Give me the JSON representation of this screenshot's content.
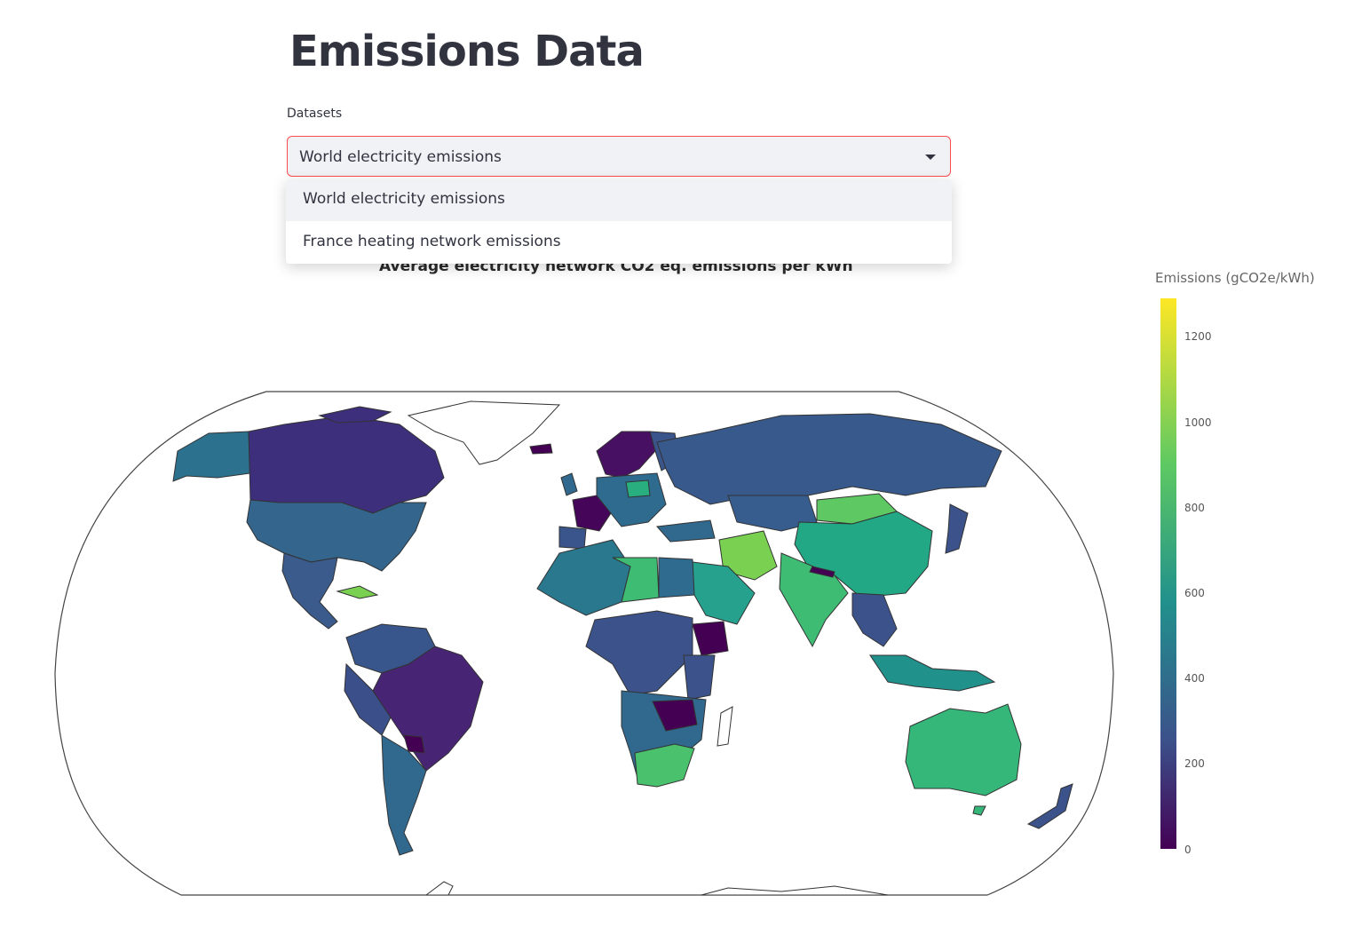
{
  "page": {
    "title": "Emissions Data"
  },
  "dataset_select": {
    "label": "Datasets",
    "selected": "World electricity emissions",
    "options": [
      "World electricity emissions",
      "France heating network emissions"
    ]
  },
  "map": {
    "title": "Average electricity network CO2 eq. emissions per kWh",
    "projection": "robinson",
    "colorscale": "viridis",
    "colorbar": {
      "title": "Emissions (gCO2e/kWh)",
      "min": 0,
      "max": 1290,
      "ticks": [
        "0",
        "200",
        "400",
        "600",
        "800",
        "1000",
        "1200"
      ]
    },
    "colors": {
      "low": "#440154",
      "mid": "#21918c",
      "high": "#fde725",
      "border": "#333333"
    }
  },
  "chart_data": {
    "type": "heatmap",
    "title": "Average electricity network CO2 eq. emissions per kWh",
    "colorbar_label": "Emissions (gCO2e/kWh)",
    "zlim": [
      0,
      1290
    ],
    "regions": [
      {
        "name": "Canada",
        "value": 150
      },
      {
        "name": "United States",
        "value": 450
      },
      {
        "name": "Mexico",
        "value": 420
      },
      {
        "name": "Brazil",
        "value": 100
      },
      {
        "name": "Argentina",
        "value": 350
      },
      {
        "name": "Russia",
        "value": 410
      },
      {
        "name": "China",
        "value": 700
      },
      {
        "name": "Mongolia",
        "value": 830
      },
      {
        "name": "India",
        "value": 800
      },
      {
        "name": "Australia",
        "value": 780
      },
      {
        "name": "South Africa",
        "value": 880
      },
      {
        "name": "Libya",
        "value": 800
      },
      {
        "name": "Saudi Arabia",
        "value": 650
      },
      {
        "name": "Ethiopia",
        "value": 30
      },
      {
        "name": "France",
        "value": 60
      },
      {
        "name": "Norway",
        "value": 30
      }
    ]
  }
}
